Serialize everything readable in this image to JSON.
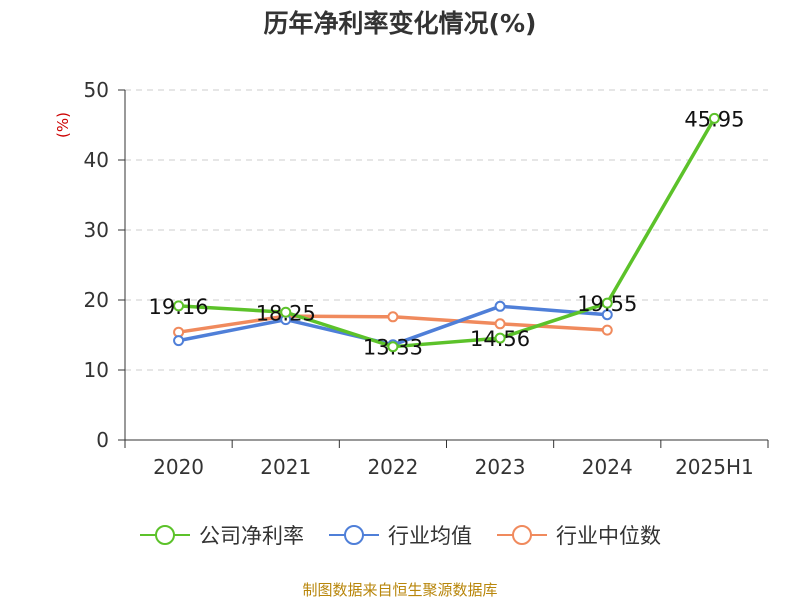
{
  "title": "历年净利率变化情况(%)",
  "source": "制图数据来自恒生聚源数据库",
  "chart_data": {
    "type": "line",
    "title": "历年净利率变化情况(%)",
    "ylabel": "(%)",
    "xlabel": "",
    "categories": [
      "2020",
      "2021",
      "2022",
      "2023",
      "2024",
      "2025H1"
    ],
    "ylim": [
      0,
      50
    ],
    "yticks": [
      0,
      10,
      20,
      30,
      40,
      50
    ],
    "grid": true,
    "legend_position": "bottom",
    "series": [
      {
        "name": "公司净利率",
        "color": "#5cc22a",
        "values": [
          19.16,
          18.25,
          13.33,
          14.56,
          19.55,
          45.95
        ],
        "labels": [
          "19.16",
          "18.25",
          "13.33",
          "14.56",
          "19.55",
          "45.95"
        ]
      },
      {
        "name": "行业均值",
        "color": "#4f7fd8",
        "values": [
          14.2,
          17.2,
          13.6,
          19.1,
          17.9,
          null
        ]
      },
      {
        "name": "行业中位数",
        "color": "#f08a5d",
        "values": [
          15.4,
          17.7,
          17.6,
          16.6,
          15.7,
          null
        ]
      }
    ]
  }
}
